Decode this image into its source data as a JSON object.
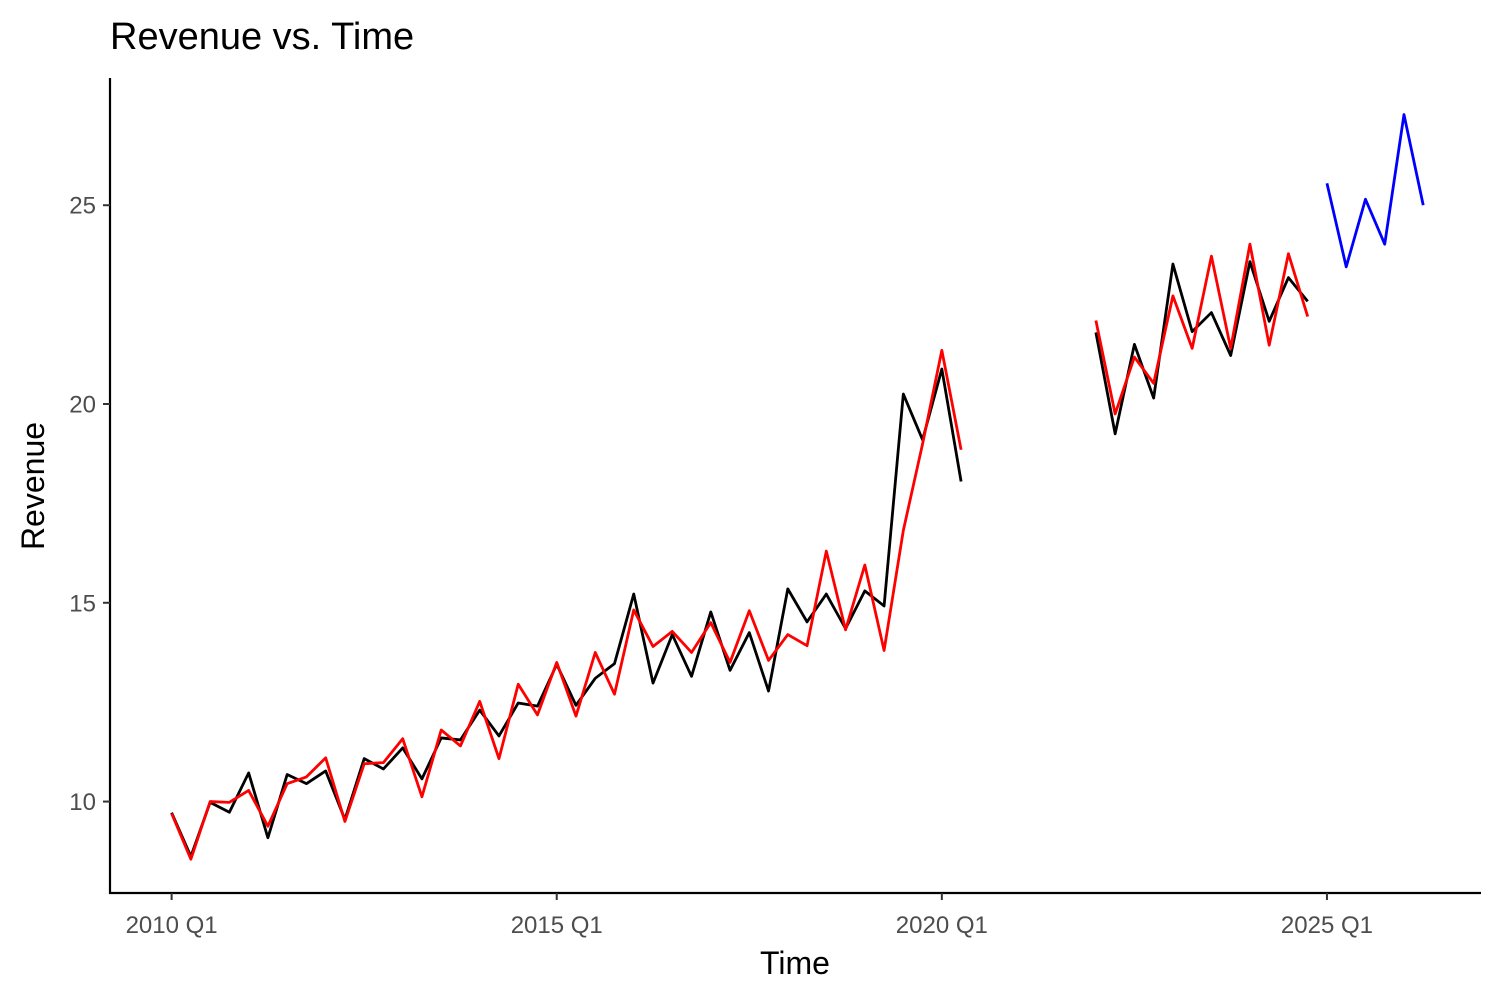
{
  "chart_data": {
    "type": "line",
    "title": "Revenue vs. Time",
    "xlabel": "Time",
    "ylabel": "Revenue",
    "x_unit": "quarter",
    "x_ticks": [
      {
        "label": "2010 Q1",
        "value": 2010.0
      },
      {
        "label": "2015 Q1",
        "value": 2015.0
      },
      {
        "label": "2020 Q1",
        "value": 2020.0
      },
      {
        "label": "2025 Q1",
        "value": 2025.0
      }
    ],
    "y_ticks": [
      10,
      15,
      20,
      25
    ],
    "xlim": [
      2009.2,
      2027.0
    ],
    "ylim": [
      7.7,
      28.2
    ],
    "grid": false,
    "legend": "none",
    "series": [
      {
        "color": "#000000",
        "segments": [
          {
            "x": [
              2010.0,
              2010.25,
              2010.5,
              2010.75,
              2011.0,
              2011.25,
              2011.5,
              2011.75,
              2012.0,
              2012.25,
              2012.5,
              2012.75,
              2013.0,
              2013.25,
              2013.5,
              2013.75,
              2014.0,
              2014.25,
              2014.5,
              2014.75,
              2015.0,
              2015.25,
              2015.5,
              2015.75,
              2016.0,
              2016.25,
              2016.5,
              2016.75,
              2017.0,
              2017.25,
              2017.5,
              2017.75,
              2018.0,
              2018.25,
              2018.5,
              2018.75,
              2019.0,
              2019.25,
              2019.5,
              2019.75,
              2020.0,
              2020.25
            ],
            "y": [
              9.72,
              8.62,
              9.98,
              9.73,
              10.72,
              9.09,
              10.68,
              10.45,
              10.77,
              9.55,
              11.08,
              10.82,
              11.35,
              10.57,
              11.6,
              11.55,
              12.3,
              11.65,
              12.48,
              12.4,
              13.45,
              12.42,
              13.1,
              13.47,
              15.22,
              12.98,
              14.2,
              13.15,
              14.77,
              13.3,
              14.25,
              12.78,
              15.35,
              14.52,
              15.22,
              14.35,
              15.3,
              14.92,
              20.25,
              19.1,
              20.88,
              18.05
            ]
          },
          {
            "x": [
              2022.0,
              2022.25,
              2022.5,
              2022.75,
              2023.0,
              2023.25,
              2023.5,
              2023.75,
              2024.0,
              2024.25,
              2024.5,
              2024.75
            ],
            "y": [
              21.8,
              19.25,
              21.5,
              20.15,
              23.52,
              21.82,
              22.3,
              21.22,
              23.58,
              22.08,
              23.18,
              22.58
            ]
          }
        ]
      },
      {
        "color": "#ff0000",
        "segments": [
          {
            "x": [
              2010.0,
              2010.25,
              2010.5,
              2010.75,
              2011.0,
              2011.25,
              2011.5,
              2011.75,
              2012.0,
              2012.25,
              2012.5,
              2012.75,
              2013.0,
              2013.25,
              2013.5,
              2013.75,
              2014.0,
              2014.25,
              2014.5,
              2014.75,
              2015.0,
              2015.25,
              2015.5,
              2015.75,
              2016.0,
              2016.25,
              2016.5,
              2016.75,
              2017.0,
              2017.25,
              2017.5,
              2017.75,
              2018.0,
              2018.25,
              2018.5,
              2018.75,
              2019.0,
              2019.25,
              2019.5,
              2019.75,
              2020.0,
              2020.25
            ],
            "y": [
              9.7,
              8.55,
              10.0,
              9.98,
              10.28,
              9.38,
              10.45,
              10.62,
              11.1,
              9.5,
              10.95,
              10.98,
              11.58,
              10.12,
              11.8,
              11.4,
              12.52,
              11.08,
              12.95,
              12.18,
              13.5,
              12.15,
              13.75,
              12.7,
              14.82,
              13.9,
              14.28,
              13.75,
              14.5,
              13.5,
              14.8,
              13.55,
              14.2,
              13.92,
              16.3,
              14.32,
              15.95,
              13.8,
              16.82,
              19.0,
              21.35,
              18.85
            ]
          },
          {
            "x": [
              2022.0,
              2022.25,
              2022.5,
              2022.75,
              2023.0,
              2023.25,
              2023.5,
              2023.75,
              2024.0,
              2024.25,
              2024.5,
              2024.75
            ],
            "y": [
              22.1,
              19.75,
              21.18,
              20.52,
              22.72,
              21.4,
              23.72,
              21.4,
              24.02,
              21.48,
              23.78,
              22.2
            ]
          }
        ]
      },
      {
        "color": "#0000ff",
        "segments": [
          {
            "x": [
              2025.0,
              2025.25,
              2025.5,
              2025.75,
              2026.0,
              2026.25
            ],
            "y": [
              25.55,
              23.45,
              25.15,
              24.02,
              27.28,
              25.0
            ]
          }
        ]
      }
    ]
  }
}
